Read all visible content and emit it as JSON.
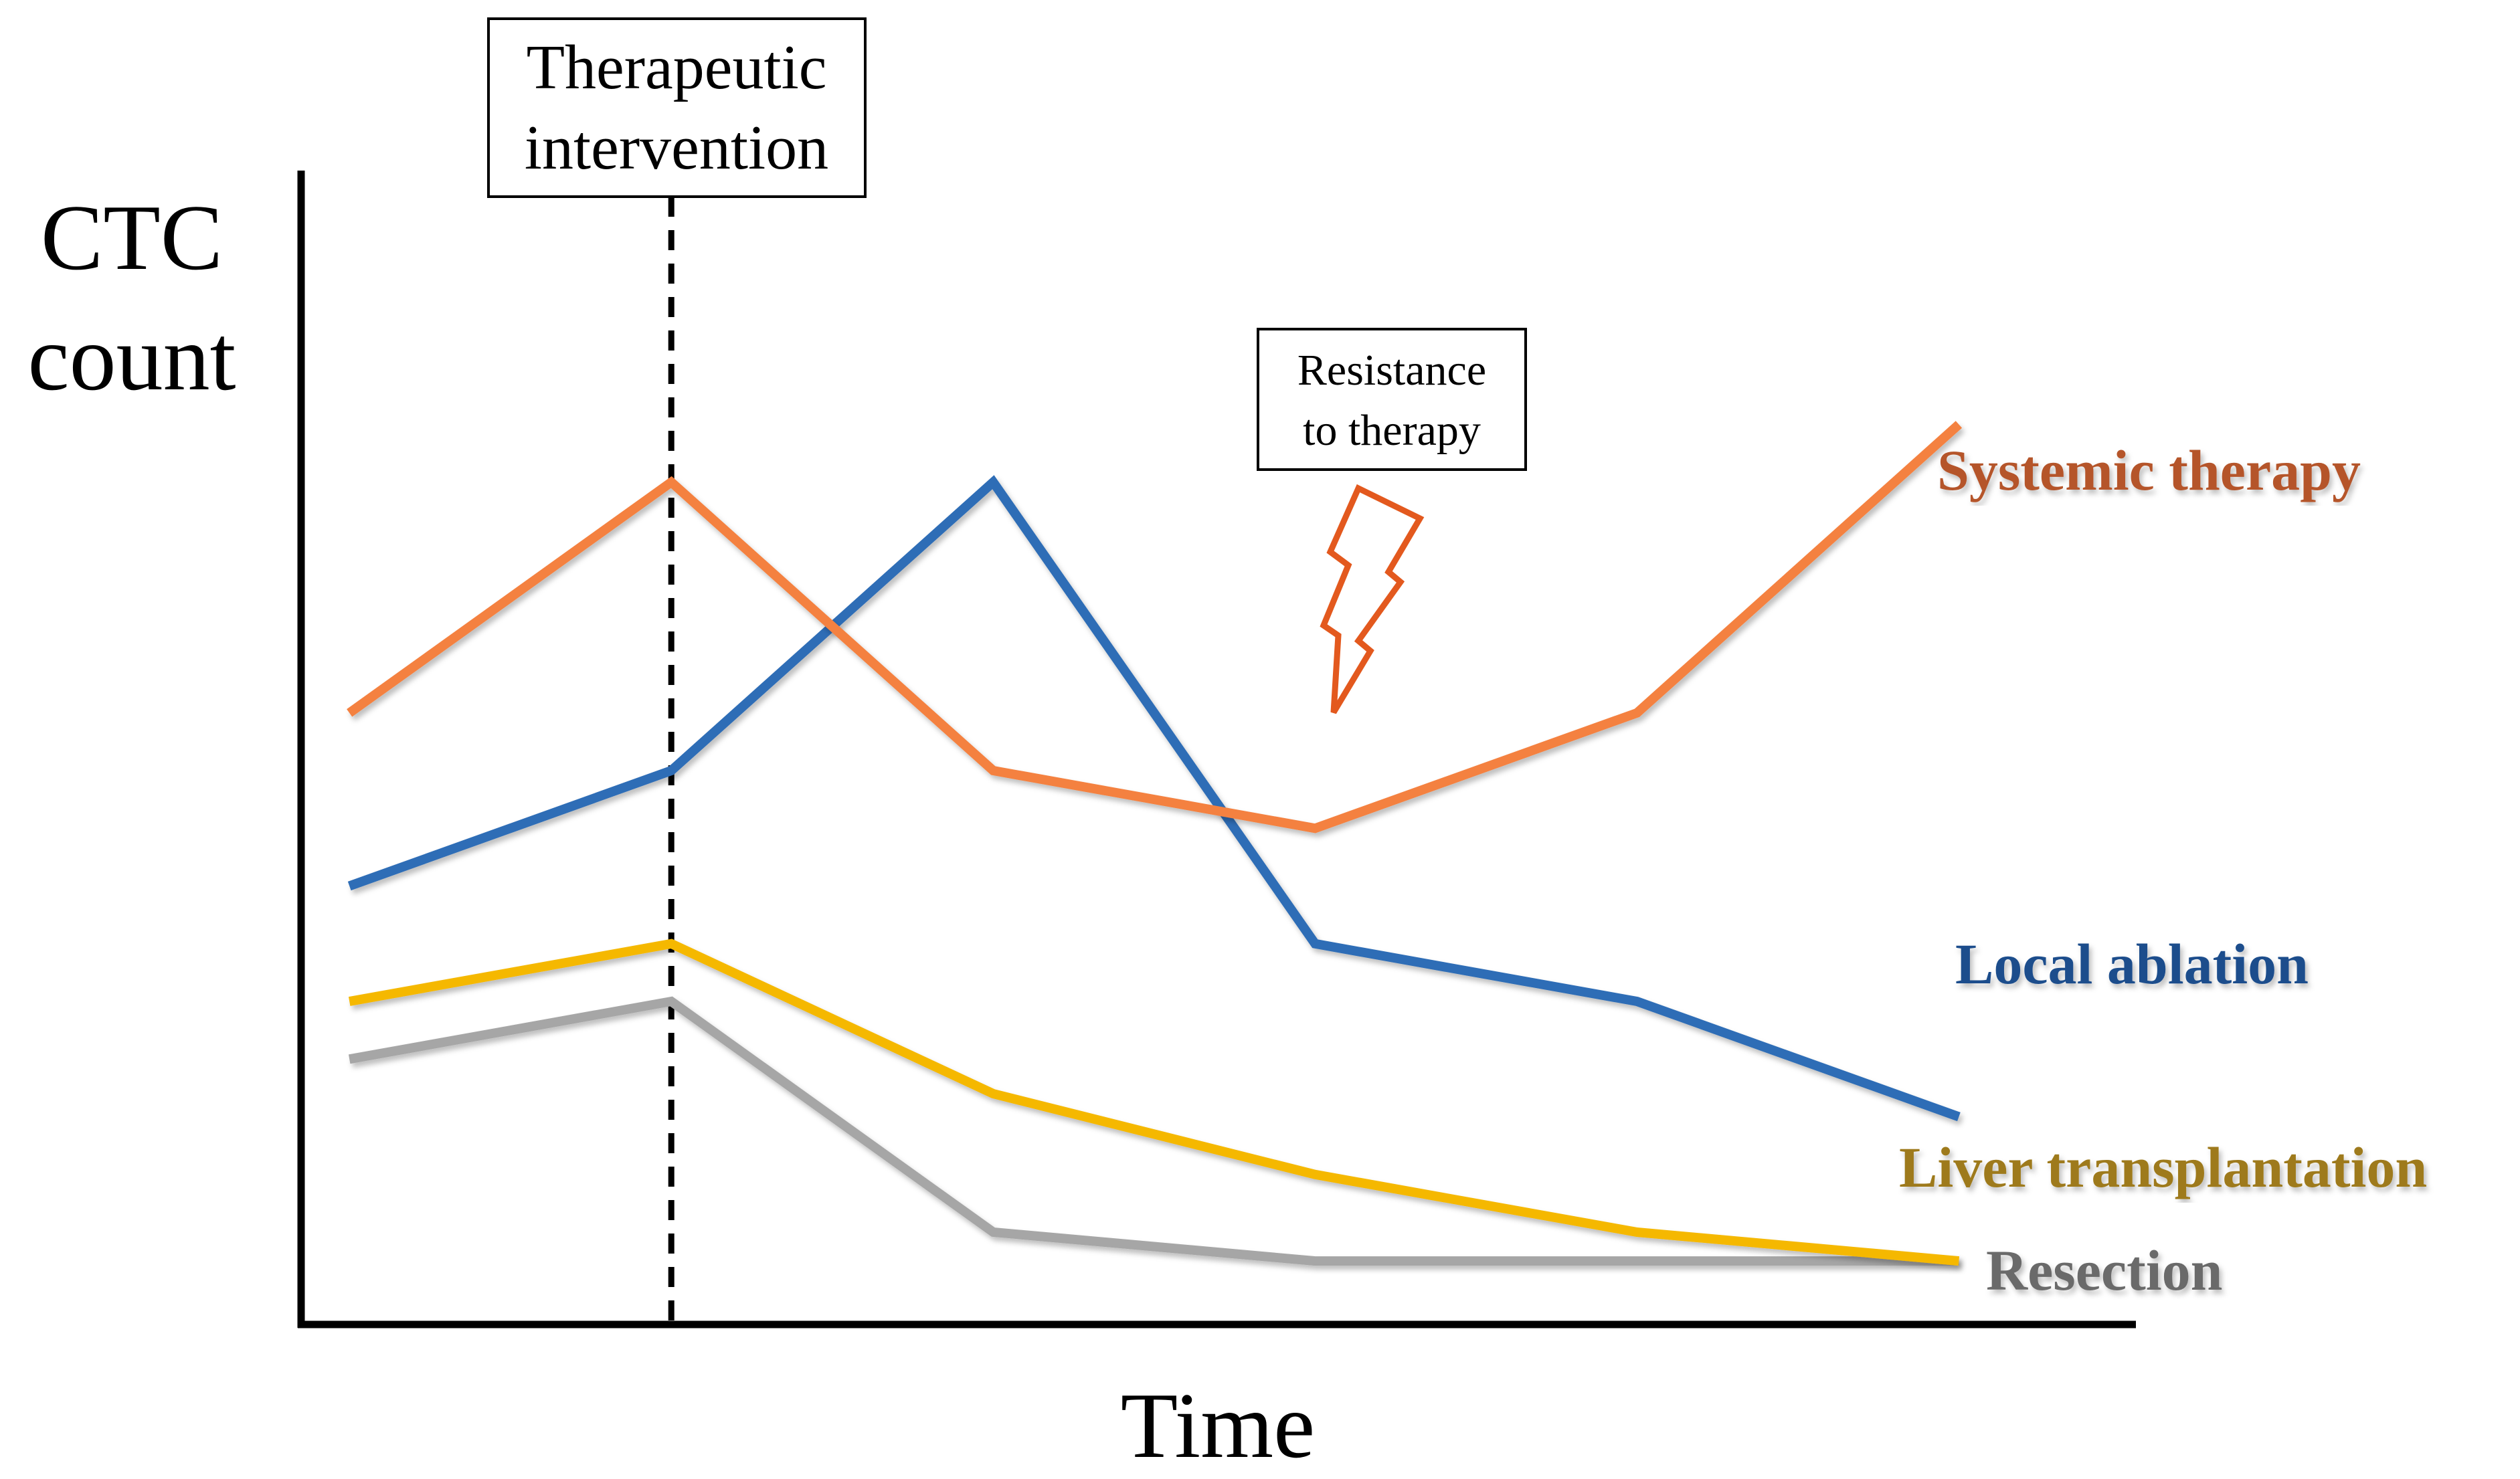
{
  "colors": {
    "systemic": "#F4813F",
    "ablation": "#2E6DB6",
    "transplant": "#F5B800",
    "resection": "#A6A6A6",
    "systemic_label": "#B5542B",
    "ablation_label": "#1F4E8C",
    "transplant_label": "#9E7A1A",
    "resection_label": "#6B6B6B",
    "bolt": "#E3591E",
    "axis": "#000000"
  },
  "icons": {
    "resistance": "lightning-bolt-icon"
  },
  "chart_data": {
    "type": "line",
    "title": "",
    "xlabel": "Time",
    "ylabel_lines": [
      "CTC",
      "count"
    ],
    "x": [
      0,
      1,
      2,
      3,
      4,
      5
    ],
    "xlim": [
      -0.15,
      5.55
    ],
    "ylim": [
      0,
      10
    ],
    "grid": false,
    "series": [
      {
        "key": "systemic",
        "name": "Systemic therapy",
        "values": [
          5.3,
          7.3,
          4.8,
          4.3,
          5.3,
          7.8
        ]
      },
      {
        "key": "ablation",
        "name": "Local ablation",
        "values": [
          3.8,
          4.8,
          7.3,
          3.3,
          2.8,
          1.8
        ]
      },
      {
        "key": "transplant",
        "name": "Liver transplantation",
        "values": [
          2.8,
          3.3,
          2.0,
          1.3,
          0.8,
          0.55
        ]
      },
      {
        "key": "resection",
        "name": "Resection",
        "values": [
          2.3,
          2.8,
          0.8,
          0.55,
          0.55,
          0.55
        ]
      }
    ],
    "annotations": {
      "intervention": {
        "x": 1,
        "lines": [
          "Therapeutic",
          "intervention"
        ]
      },
      "resistance": {
        "x": 3,
        "lines": [
          "Resistance",
          "to therapy"
        ]
      }
    }
  }
}
